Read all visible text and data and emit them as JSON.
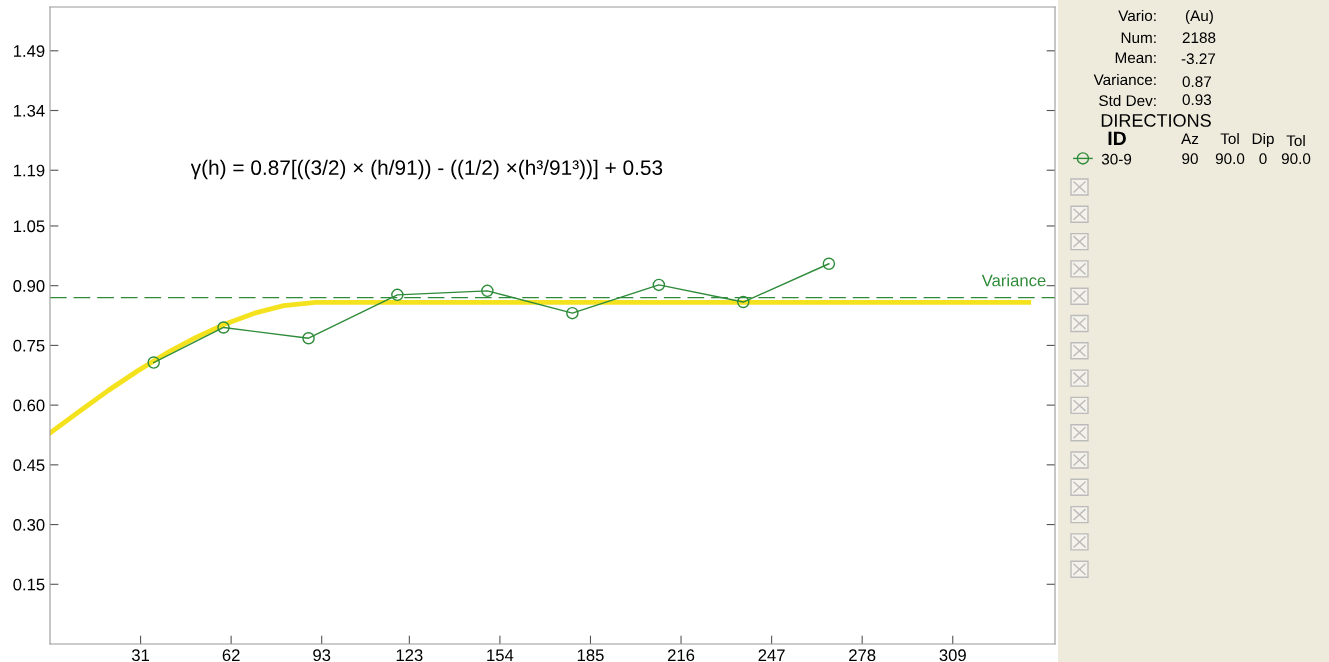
{
  "chart_data": {
    "type": "line",
    "xlim": [
      0,
      344
    ],
    "ylim": [
      0,
      1.6
    ],
    "xticks": [
      31,
      62,
      93,
      123,
      154,
      185,
      216,
      247,
      278,
      309
    ],
    "yticks": [
      {
        "value": 0.15,
        "label": "0.15"
      },
      {
        "value": 0.3,
        "label": "0.30"
      },
      {
        "value": 0.45,
        "label": "0.45"
      },
      {
        "value": 0.6,
        "label": "0.60"
      },
      {
        "value": 0.75,
        "label": "0.75"
      },
      {
        "value": 0.9,
        "label": "0.90"
      },
      {
        "value": 1.05,
        "label": "1.05"
      },
      1.19,
      1.34,
      1.49
    ],
    "grid": false,
    "legend": "right",
    "series": [
      {
        "color": "#f5e21e",
        "marker": "none",
        "x": [
          0,
          10,
          20,
          30,
          40,
          50,
          60,
          70,
          80,
          91,
          335
        ],
        "values": [
          0.53,
          0.584,
          0.637,
          0.686,
          0.731,
          0.77,
          0.804,
          0.831,
          0.85,
          0.858,
          0.858
        ]
      },
      {
        "name": "30-9",
        "color": "#2e8b3a",
        "marker": "circle",
        "x": [
          35.5,
          59.4,
          88.5,
          118.9,
          149.7,
          178.8,
          208.4,
          237.3,
          266.6
        ],
        "values": [
          0.707,
          0.795,
          0.768,
          0.877,
          0.887,
          0.831,
          0.902,
          0.859,
          0.955
        ]
      }
    ],
    "ref_lines": [
      {
        "axis": "y",
        "value": 0.87,
        "label": "Variance",
        "color": "#2e8b3a",
        "line_style": "dashed"
      }
    ],
    "annotations": [
      "γ(h) = 0.87[((3/2) × (h/91)) - ((1/2) ×(h³/91³))] + 0.53",
      "Vario:",
      "(Au)",
      "Num:",
      "2188",
      "Mean:",
      "-3.27",
      "Variance:",
      "0.87",
      "Std Dev:",
      "0.93",
      "DIRECTIONS",
      "ID",
      "Az",
      "Tol",
      "Dip",
      "Tol",
      "90",
      "90.0",
      "0",
      "90.0"
    ]
  }
}
